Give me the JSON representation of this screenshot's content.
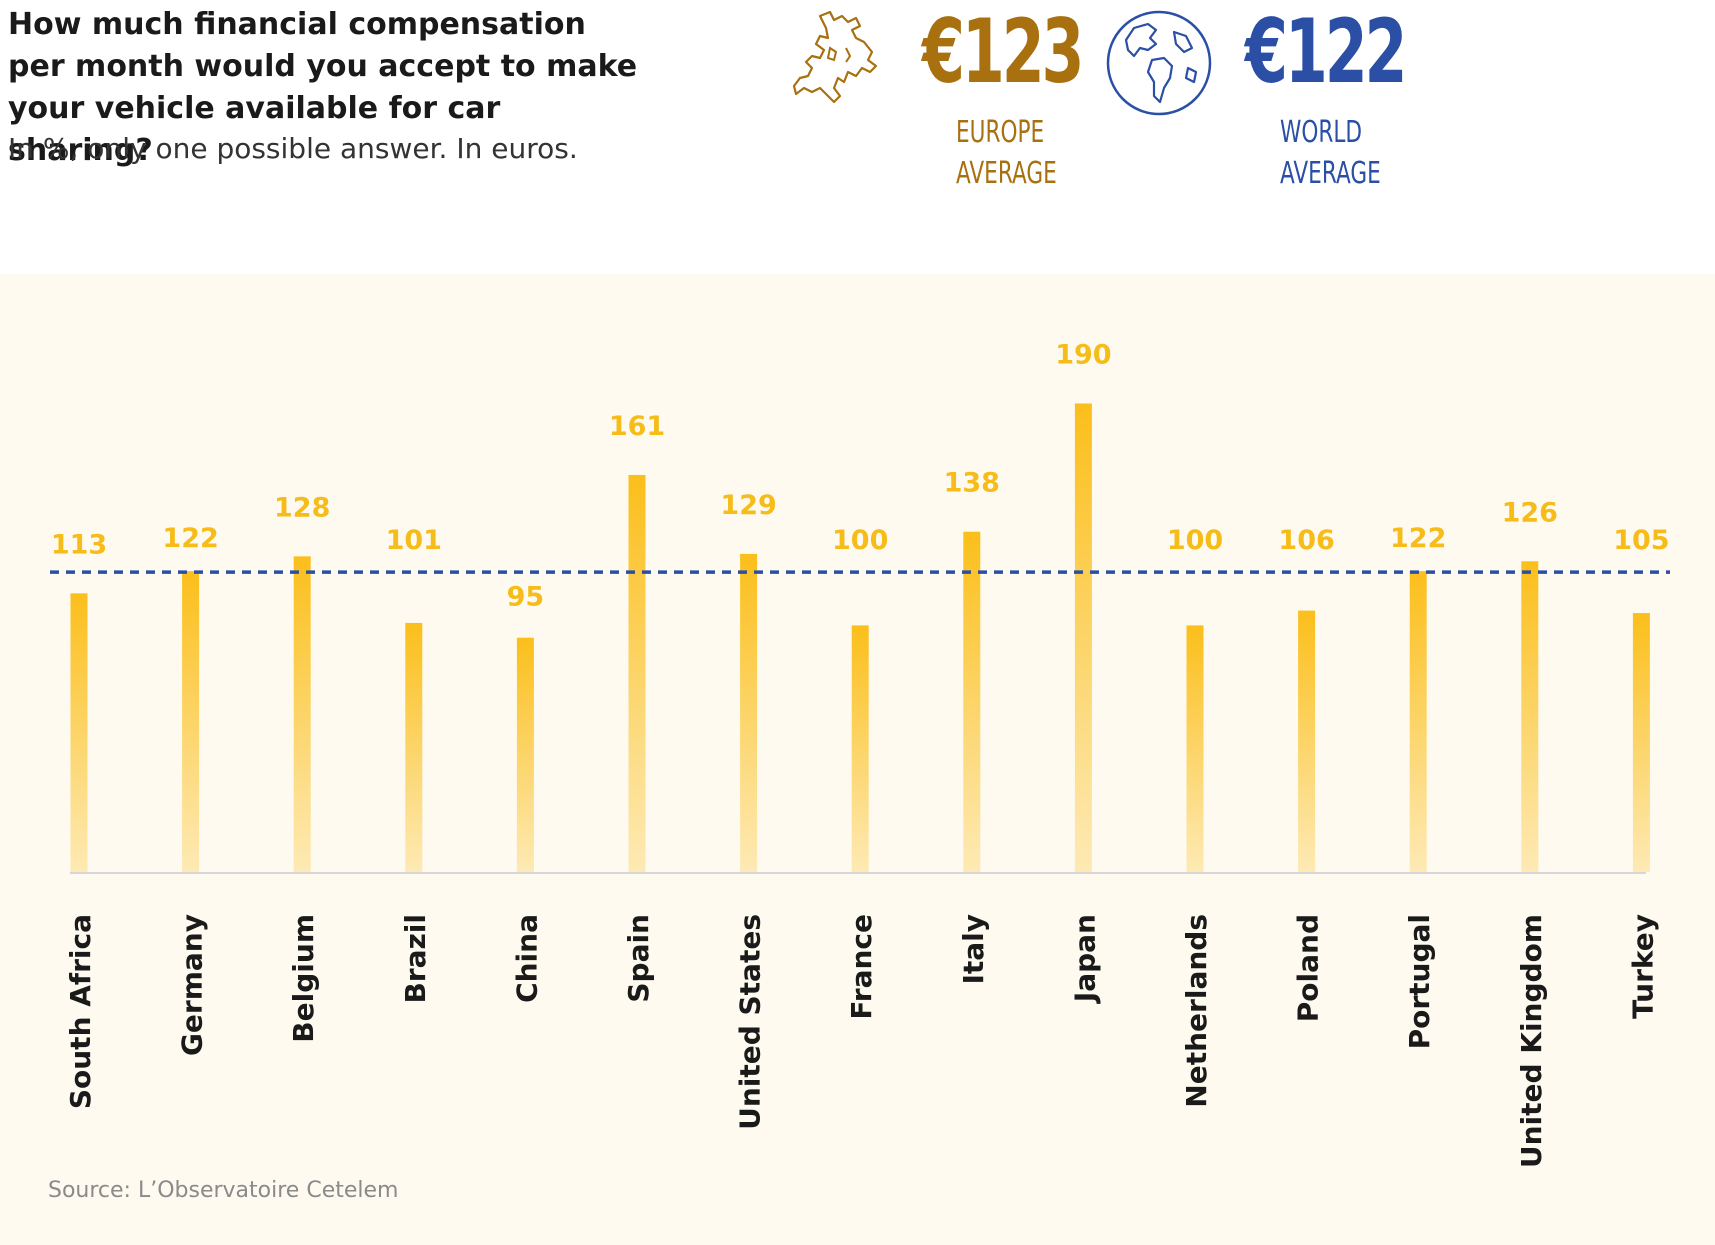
{
  "header": {
    "title": "How much financial compensation per month would you accept to make your vehicle available for car sharing?",
    "subtitle": "In %, only one possible answer. In euros."
  },
  "averages": {
    "europe": {
      "value": "€123",
      "label_line1": "EUROPE",
      "label_line2": "AVERAGE",
      "icon": "europe-map-icon",
      "color": "#a8700f"
    },
    "world": {
      "value": "€122",
      "label_line1": "WORLD",
      "label_line2": "AVERAGE",
      "icon": "globe-icon",
      "color": "#2a4fa5"
    }
  },
  "chart_data": {
    "type": "bar",
    "categories": [
      "South Africa",
      "Germany",
      "Belgium",
      "Brazil",
      "China",
      "Spain",
      "United States",
      "France",
      "Italy",
      "Japan",
      "Netherlands",
      "Poland",
      "Portugal",
      "United Kingdom",
      "Turkey"
    ],
    "values": [
      113,
      122,
      128,
      101,
      95,
      161,
      129,
      100,
      138,
      190,
      100,
      106,
      122,
      126,
      105
    ],
    "reference_line": {
      "value": 122,
      "style": "dashed",
      "color": "#2a4fa5"
    },
    "bar_color": "#fbbf1b",
    "label_color": "#f5bc1a",
    "ylim": [
      0,
      190
    ],
    "grid": false
  },
  "footer": {
    "source": "Source: L’Observatoire Cetelem"
  }
}
